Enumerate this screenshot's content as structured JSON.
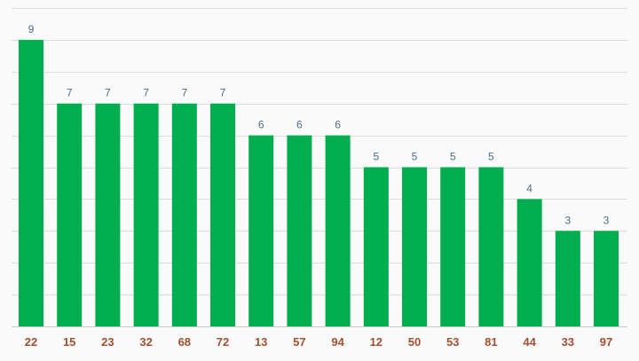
{
  "chart_data": {
    "type": "bar",
    "categories": [
      "22",
      "15",
      "23",
      "32",
      "68",
      "72",
      "13",
      "57",
      "94",
      "12",
      "50",
      "53",
      "81",
      "44",
      "33",
      "97"
    ],
    "values": [
      9,
      7,
      7,
      7,
      7,
      7,
      6,
      6,
      6,
      5,
      5,
      5,
      5,
      4,
      3,
      3
    ],
    "title": "",
    "xlabel": "",
    "ylabel": "",
    "ylim": [
      0,
      10
    ],
    "grid": true,
    "legend": "none",
    "colors": {
      "bar": "#00ae4f",
      "value_label": "#4f6b88",
      "tick_label": "#a0502f",
      "grid": "#dcdcdc",
      "background": "#fafafa"
    }
  }
}
